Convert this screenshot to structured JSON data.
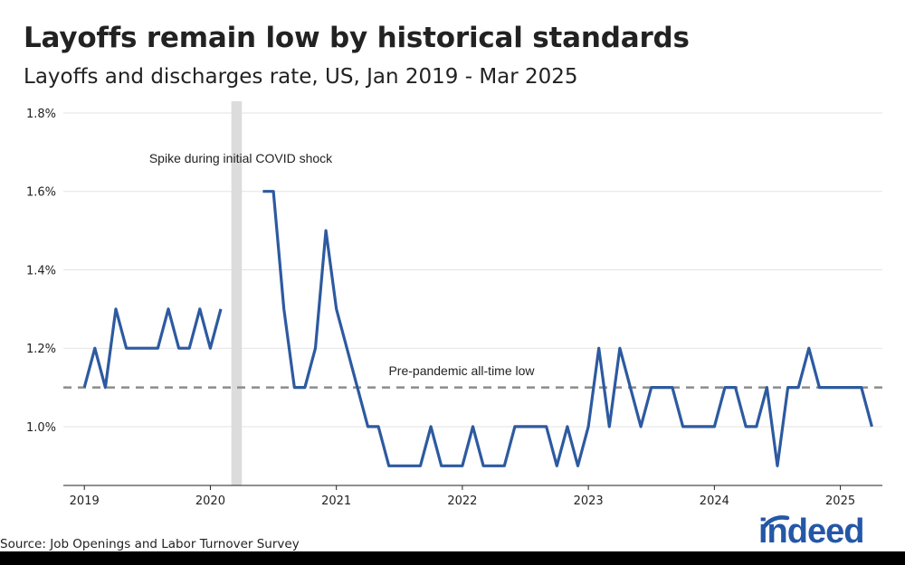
{
  "title": "Layoffs remain low by historical standards",
  "subtitle": "Layoffs and discharges rate, US, Jan 2019 - Mar 2025",
  "source": "Source: Job Openings and Labor Turnover Survey",
  "logo_text": "indeed",
  "colors": {
    "line": "#2d5aa0",
    "reference_line": "#8c8c8c",
    "highlight_band": "#dcdcdc",
    "grid": "#e3e3e3",
    "axis": "#222222",
    "text": "#222222",
    "logo": "#2557a7"
  },
  "chart_data": {
    "type": "line",
    "title": "Layoffs remain low by historical standards",
    "subtitle": "Layoffs and discharges rate, US, Jan 2019 - Mar 2025",
    "xlabel": "",
    "ylabel": "",
    "ylim": [
      0.85,
      1.83
    ],
    "y_ticks": [
      1.0,
      1.2,
      1.4,
      1.6,
      1.8
    ],
    "y_tick_labels": [
      "1.0%",
      "1.2%",
      "1.4%",
      "1.6%",
      "1.8%"
    ],
    "x_ticks": [
      "2019",
      "2020",
      "2021",
      "2022",
      "2023",
      "2024",
      "2025"
    ],
    "x_range": [
      "2018-11",
      "2025-05"
    ],
    "grid": true,
    "highlighted_period": {
      "start": "2020-03",
      "end": "2020-04",
      "label": "Spike during initial COVID shock"
    },
    "reference_line": {
      "value": 1.1,
      "label": "Pre-pandemic all-time low",
      "style": "dashed"
    },
    "series": [
      {
        "name": "Layoffs and discharges rate",
        "start": "2019-01",
        "values": [
          1.1,
          1.2,
          1.1,
          1.3,
          1.2,
          1.2,
          1.2,
          1.2,
          1.3,
          1.2,
          1.2,
          1.3,
          1.2,
          1.3,
          null,
          null,
          null,
          1.6,
          1.6,
          1.3,
          1.1,
          1.1,
          1.2,
          1.5,
          1.3,
          1.2,
          1.1,
          1.0,
          1.0,
          0.9,
          0.9,
          0.9,
          0.9,
          1.0,
          0.9,
          0.9,
          0.9,
          1.0,
          0.9,
          0.9,
          0.9,
          1.0,
          1.0,
          1.0,
          1.0,
          0.9,
          1.0,
          0.9,
          1.0,
          1.2,
          1.0,
          1.2,
          1.1,
          1.0,
          1.1,
          1.1,
          1.1,
          1.0,
          1.0,
          1.0,
          1.0,
          1.1,
          1.1,
          1.0,
          1.0,
          1.1,
          0.9,
          1.1,
          1.1,
          1.2,
          1.1,
          1.1,
          1.1,
          1.1,
          1.1,
          1.0
        ]
      }
    ]
  }
}
